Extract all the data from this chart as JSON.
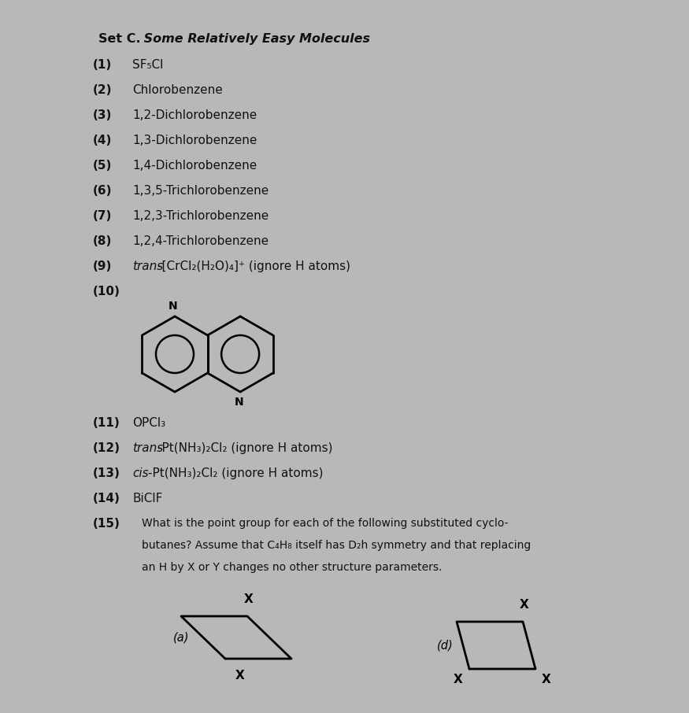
{
  "bg_color": "#b8b8b8",
  "title_bold": "Set C.",
  "title_rest": "  Some Relatively Easy Molecules",
  "items": [
    {
      "num": "(1)",
      "text": "SF₅Cl",
      "italic_prefix": ""
    },
    {
      "num": "(2)",
      "text": "Chlorobenzene",
      "italic_prefix": ""
    },
    {
      "num": "(3)",
      "text": "1,2-Dichlorobenzene",
      "italic_prefix": ""
    },
    {
      "num": "(4)",
      "text": "1,3-Dichlorobenzene",
      "italic_prefix": ""
    },
    {
      "num": "(5)",
      "text": "1,4-Dichlorobenzene",
      "italic_prefix": ""
    },
    {
      "num": "(6)",
      "text": "1,3,5-Trichlorobenzene",
      "italic_prefix": ""
    },
    {
      "num": "(7)",
      "text": "1,2,3-Trichlorobenzene",
      "italic_prefix": ""
    },
    {
      "num": "(8)",
      "text": "1,2,4-Trichlorobenzene",
      "italic_prefix": ""
    },
    {
      "num": "(9)",
      "text": "-[CrCl₂(H₂O)₄]⁺ (ignore H atoms)",
      "italic_prefix": "trans"
    },
    {
      "num": "(10)",
      "text": "",
      "italic_prefix": ""
    },
    {
      "num": "(11)",
      "text": "OPCl₃",
      "italic_prefix": ""
    },
    {
      "num": "(12)",
      "text": "-Pt(NH₃)₂Cl₂ (ignore H atoms)",
      "italic_prefix": "trans"
    },
    {
      "num": "(13)",
      "text": "-Pt(NH₃)₂Cl₂ (ignore H atoms)",
      "italic_prefix": "cis"
    },
    {
      "num": "(14)",
      "text": "BiClF",
      "italic_prefix": ""
    },
    {
      "num": "(15)",
      "text": "What is the point group for each of the following substituted cyclo-butanes? Assume that C₄H₈ itself has D₂h symmetry and that replacing an H by X or Y changes no other structure parameters.",
      "italic_prefix": ""
    }
  ],
  "font_size_title": 11.5,
  "font_size_items": 11,
  "font_size_small": 10,
  "text_color": "#111111"
}
